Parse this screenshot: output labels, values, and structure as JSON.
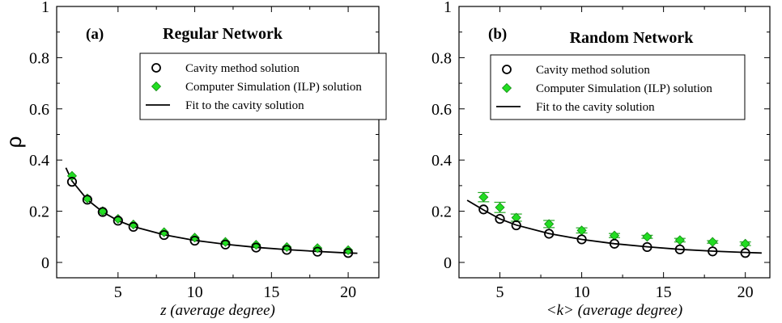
{
  "chart_data": [
    {
      "type": "scatter",
      "panel_label": "(a)",
      "title": "Regular Network",
      "xlabel": "z (average degree)",
      "ylabel": "ρ",
      "xlim": [
        1,
        22
      ],
      "ylim": [
        -0.06,
        1.0
      ],
      "xticks": [
        5,
        10,
        15,
        20
      ],
      "yticks": [
        0,
        0.2,
        0.4,
        0.6,
        0.8,
        1
      ],
      "ytick_labels": [
        "0",
        "0.2",
        "0.4",
        "0.6",
        "0.8",
        "1"
      ],
      "show_y_tick_labels": true,
      "legend_position": "top-right",
      "series": [
        {
          "name": "Cavity method solution",
          "marker": "open-circle",
          "x": [
            2,
            3,
            4,
            5,
            6,
            8,
            10,
            12,
            14,
            16,
            18,
            20
          ],
          "y": [
            0.315,
            0.245,
            0.197,
            0.163,
            0.139,
            0.107,
            0.085,
            0.07,
            0.058,
            0.049,
            0.042,
            0.037
          ]
        },
        {
          "name": "Computer Simulation (ILP) solution",
          "marker": "green-diamond",
          "x": [
            2,
            3,
            4,
            5,
            6,
            8,
            10,
            12,
            14,
            16,
            18,
            20
          ],
          "y": [
            0.338,
            0.25,
            0.2,
            0.17,
            0.148,
            0.118,
            0.097,
            0.08,
            0.069,
            0.06,
            0.056,
            0.048
          ],
          "err": []
        },
        {
          "name": "Fit to the cavity solution",
          "marker": "line",
          "x": [
            1.6,
            2,
            3,
            4,
            5,
            6,
            8,
            10,
            12,
            14,
            16,
            18,
            20,
            20.6
          ],
          "y": [
            0.37,
            0.318,
            0.245,
            0.197,
            0.163,
            0.14,
            0.108,
            0.086,
            0.071,
            0.059,
            0.05,
            0.043,
            0.037,
            0.036
          ]
        }
      ]
    },
    {
      "type": "scatter",
      "panel_label": "(b)",
      "title": "Random Network",
      "xlabel": "<k> (average degree)",
      "ylabel": "",
      "xlim": [
        2.5,
        21.5
      ],
      "ylim": [
        -0.06,
        1.0
      ],
      "xticks": [
        5,
        10,
        15,
        20
      ],
      "yticks": [
        0,
        0.2,
        0.4,
        0.6,
        0.8,
        1
      ],
      "ytick_labels": [
        "0",
        "0.2",
        "0.4",
        "0.6",
        "0.8",
        "1"
      ],
      "show_y_tick_labels": true,
      "legend_position": "top-right",
      "series": [
        {
          "name": "Cavity method solution",
          "marker": "open-circle",
          "x": [
            4,
            5,
            6,
            8,
            10,
            12,
            14,
            16,
            18,
            20
          ],
          "y": [
            0.207,
            0.17,
            0.145,
            0.112,
            0.09,
            0.073,
            0.06,
            0.051,
            0.043,
            0.037
          ]
        },
        {
          "name": "Computer Simulation (ILP) solution",
          "marker": "green-diamond",
          "x": [
            4,
            5,
            6,
            8,
            10,
            12,
            14,
            16,
            18,
            20
          ],
          "y": [
            0.255,
            0.215,
            0.175,
            0.15,
            0.125,
            0.105,
            0.1,
            0.087,
            0.08,
            0.073
          ],
          "err": [
            0.018,
            0.02,
            0.014,
            0.014,
            0.01,
            0.008,
            0.006,
            0.007,
            0.005,
            0.007
          ]
        },
        {
          "name": "Fit to the cavity solution",
          "marker": "line",
          "x": [
            3,
            4,
            5,
            6,
            8,
            10,
            12,
            14,
            16,
            18,
            20,
            21
          ],
          "y": [
            0.243,
            0.205,
            0.17,
            0.146,
            0.113,
            0.09,
            0.073,
            0.061,
            0.051,
            0.044,
            0.039,
            0.037
          ]
        }
      ]
    }
  ],
  "colors": {
    "axis": "#000000",
    "diamond_fill": "#22dd22",
    "diamond_stroke": "#118811",
    "errorbar": "#22aa22",
    "fit_line": "#000000"
  }
}
